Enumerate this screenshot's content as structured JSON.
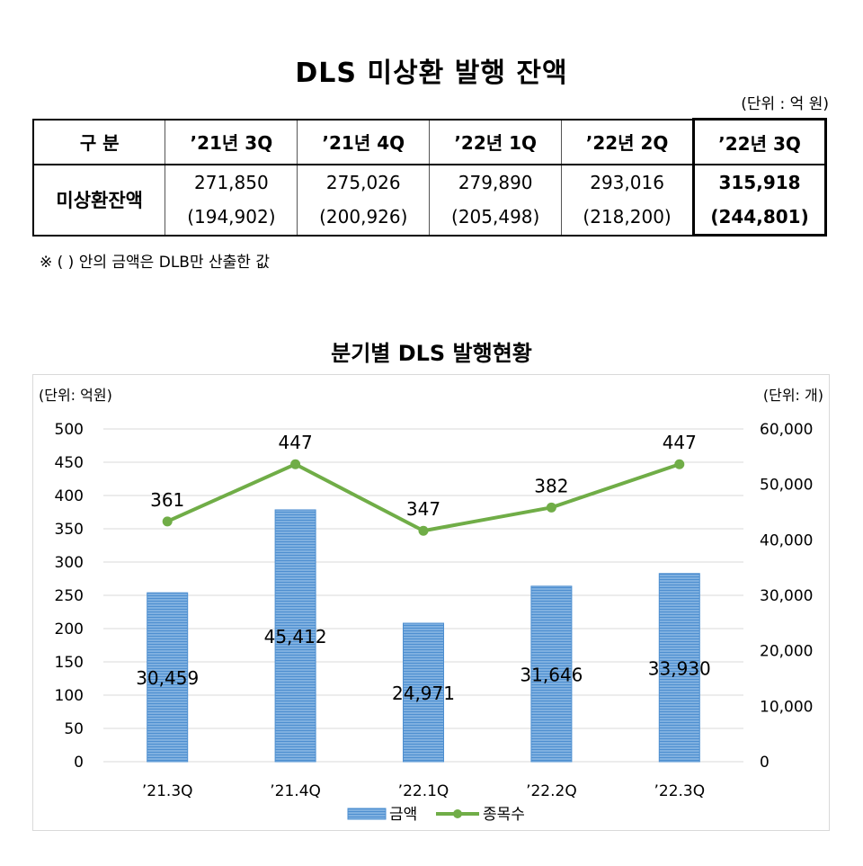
{
  "title": "DLS 미상환 발행 잔액",
  "unit": "(단위 : 억 원)",
  "table": {
    "header_label": "구 분",
    "row_label": "미상환잔액",
    "columns": [
      {
        "label": "’21년 3Q",
        "total": "271,850",
        "dlb": "(194,902)"
      },
      {
        "label": "’21년 4Q",
        "total": "275,026",
        "dlb": "(200,926)"
      },
      {
        "label": "’22년 1Q",
        "total": "279,890",
        "dlb": "(205,498)"
      },
      {
        "label": "’22년 2Q",
        "total": "293,016",
        "dlb": "(218,200)"
      },
      {
        "label": "’22년 3Q",
        "total": "315,918",
        "dlb": "(244,801)"
      }
    ]
  },
  "note": "※ (   ) 안의 금액은 DLB만 산출한 값",
  "chart_title": "분기별 DLS 발행현황",
  "chart_data": {
    "type": "bar",
    "categories": [
      "’21.3Q",
      "’21.4Q",
      "’22.1Q",
      "’22.2Q",
      "’22.3Q"
    ],
    "y_left": {
      "label": "(단위: 억원)",
      "ticks": [
        "0",
        "50",
        "100",
        "150",
        "200",
        "250",
        "300",
        "350",
        "400",
        "450",
        "500"
      ],
      "ylim": [
        0,
        60000
      ]
    },
    "y_right": {
      "label": "(단위: 개)",
      "ticks": [
        "0",
        "10,000",
        "20,000",
        "30,000",
        "40,000",
        "50,000",
        "60,000"
      ],
      "ylim": [
        0,
        60000
      ]
    },
    "series": [
      {
        "name": "금액",
        "kind": "bar",
        "axis": "right",
        "values": [
          30459,
          45412,
          24971,
          31646,
          33930
        ],
        "labels": [
          "30,459",
          "45,412",
          "24,971",
          "31,646",
          "33,930"
        ],
        "color": "#5b9bd5"
      },
      {
        "name": "종목수",
        "kind": "line",
        "axis": "left",
        "values": [
          361,
          447,
          347,
          382,
          447
        ],
        "labels": [
          "361",
          "447",
          "347",
          "382",
          "447"
        ],
        "color": "#70ad47"
      }
    ],
    "legend": "bottom",
    "grid": true
  }
}
